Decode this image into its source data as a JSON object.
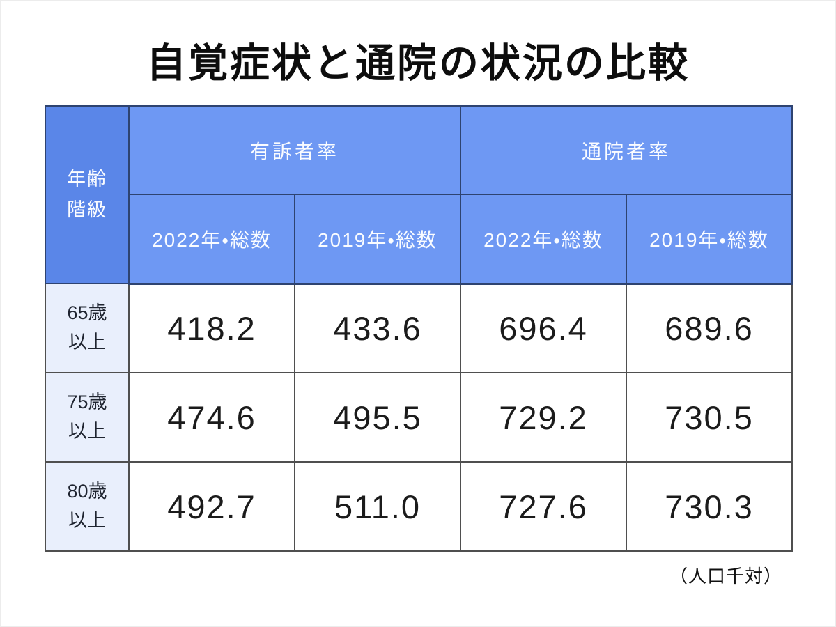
{
  "title": "自覚症状と通院の状況の比較",
  "footnote": "（人口千対）",
  "table": {
    "age_class_header": "年齢\n階級",
    "group_headers": [
      "有訴者率",
      "通院者率"
    ],
    "sub_headers": [
      "2022年・総数",
      "2019年・総数",
      "2022年・総数",
      "2019年・総数"
    ],
    "rows": [
      {
        "age": "65歳\n以上",
        "values": [
          "418.2",
          "433.6",
          "696.4",
          "689.6"
        ]
      },
      {
        "age": "75歳\n以上",
        "values": [
          "474.6",
          "495.5",
          "729.2",
          "730.5"
        ]
      },
      {
        "age": "80歳\n以上",
        "values": [
          "492.7",
          "511.0",
          "727.6",
          "730.3"
        ]
      }
    ]
  },
  "chart_data": {
    "type": "table",
    "title": "自覚症状と通院の状況の比較",
    "unit_note": "人口千対",
    "row_header": "年齢階級",
    "column_groups": [
      {
        "label": "有訴者率",
        "columns": [
          "2022年・総数",
          "2019年・総数"
        ]
      },
      {
        "label": "通院者率",
        "columns": [
          "2022年・総数",
          "2019年・総数"
        ]
      }
    ],
    "rows": [
      "65歳以上",
      "75歳以上",
      "80歳以上"
    ],
    "values": [
      [
        418.2,
        433.6,
        696.4,
        689.6
      ],
      [
        474.6,
        495.5,
        729.2,
        730.5
      ],
      [
        492.7,
        511.0,
        727.6,
        730.3
      ]
    ]
  },
  "colors": {
    "header_blue": "#6E98F3",
    "header_blue_dark": "#5A86E8",
    "light_cell": "#E9EFFC",
    "border_navy": "#2E4370",
    "border_gray": "#4F4F4F",
    "header_text": "#FAFCFF",
    "body_text": "#1B1B1B"
  }
}
